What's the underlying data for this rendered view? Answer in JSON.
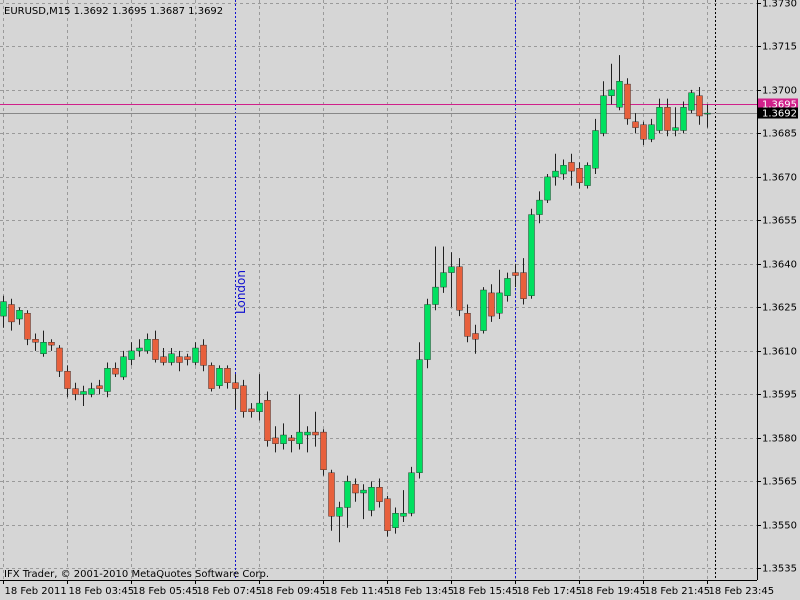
{
  "chart_data": {
    "type": "candlestick",
    "title": "EURUSD,M15  1.3692 1.3695 1.3687 1.3692",
    "footer": "IFX Trader, © 2001-2010 MetaQuotes Software Corp.",
    "categories": [
      "18 Feb 2011",
      null,
      null,
      null,
      null,
      null,
      null,
      null,
      "18 Feb 03:45",
      null,
      null,
      null,
      null,
      null,
      null,
      null,
      "18 Feb 05:45",
      null,
      null,
      null,
      null,
      null,
      null,
      null,
      "18 Feb 07:45",
      null,
      null,
      null,
      null,
      null,
      null,
      null,
      "18 Feb 09:45",
      null,
      null,
      null,
      null,
      null,
      null,
      null,
      "18 Feb 11:45",
      null,
      null,
      null,
      null,
      null,
      null,
      null,
      "18 Feb 13:45",
      null,
      null,
      null,
      null,
      null,
      null,
      null,
      "18 Feb 15:45",
      null,
      null,
      null,
      null,
      null,
      null,
      null,
      "18 Feb 17:45",
      null,
      null,
      null,
      null,
      null,
      null,
      null,
      "18 Feb 19:45",
      null,
      null,
      null,
      null,
      null,
      null,
      null,
      "18 Feb 21:45",
      null,
      null,
      null,
      null,
      null,
      null,
      null,
      "18 Feb 23:45"
    ],
    "open": [
      1.3622,
      1.3626,
      1.3621,
      1.3623,
      1.3614,
      1.3609,
      1.3613,
      1.3611,
      1.3603,
      1.3597,
      1.3595,
      1.3595,
      1.3598,
      1.3596,
      1.3604,
      1.3601,
      1.3607,
      1.361,
      1.361,
      1.3614,
      1.3608,
      1.3606,
      1.3608,
      1.3608,
      1.3606,
      1.3612,
      1.3605,
      1.3598,
      1.3604,
      1.3599,
      1.3598,
      1.359,
      1.3589,
      1.3593,
      1.358,
      1.3578,
      1.358,
      1.3578,
      1.3581,
      1.3582,
      1.3582,
      1.3568,
      1.3553,
      1.3556,
      1.3564,
      1.3561,
      1.3555,
      1.3563,
      1.3559,
      1.3549,
      1.3553,
      1.3554,
      1.3568,
      1.3607,
      1.3626,
      1.3632,
      1.3637,
      1.3639,
      1.3623,
      1.3616,
      1.3617,
      1.363,
      1.3623,
      1.3629,
      1.3637,
      1.3637,
      1.3629,
      1.3657,
      1.3662,
      1.367,
      1.3671,
      1.3675,
      1.3673,
      1.3667,
      1.3673,
      1.3685,
      1.3698,
      1.3694,
      1.3702,
      1.3689,
      1.3688,
      1.3683,
      1.3686,
      1.3694,
      1.3686,
      1.3686,
      1.3693,
      1.3698,
      1.3692
    ],
    "high": [
      1.3629,
      1.3628,
      1.3625,
      1.3624,
      1.3616,
      1.3617,
      1.3614,
      1.3612,
      1.3605,
      1.3599,
      1.3598,
      1.3599,
      1.36,
      1.3606,
      1.3606,
      1.361,
      1.3613,
      1.3614,
      1.3616,
      1.3617,
      1.3611,
      1.3611,
      1.361,
      1.3609,
      1.3613,
      1.3614,
      1.3606,
      1.3605,
      1.3605,
      1.3602,
      1.36,
      1.3592,
      1.3602,
      1.3596,
      1.3584,
      1.3585,
      1.3581,
      1.3595,
      1.3584,
      1.3589,
      1.3583,
      1.3569,
      1.3558,
      1.3567,
      1.3566,
      1.3564,
      1.3565,
      1.3566,
      1.356,
      1.3556,
      1.3562,
      1.357,
      1.3613,
      1.3628,
      1.3646,
      1.3646,
      1.3644,
      1.3642,
      1.3626,
      1.3619,
      1.3632,
      1.3633,
      1.3638,
      1.3637,
      1.364,
      1.3642,
      1.3659,
      1.3665,
      1.3671,
      1.3678,
      1.3676,
      1.3678,
      1.3675,
      1.3675,
      1.369,
      1.3703,
      1.3709,
      1.3712,
      1.3704,
      1.3692,
      1.3689,
      1.369,
      1.3697,
      1.3697,
      1.3694,
      1.3696,
      1.37,
      1.3701,
      1.3695
    ],
    "low": [
      1.3618,
      1.3617,
      1.3619,
      1.3612,
      1.361,
      1.3608,
      1.361,
      1.3601,
      1.3594,
      1.3593,
      1.3591,
      1.3594,
      1.3595,
      1.3594,
      1.3601,
      1.36,
      1.3605,
      1.3608,
      1.3609,
      1.3606,
      1.3605,
      1.3605,
      1.3603,
      1.3605,
      1.3605,
      1.3603,
      1.3596,
      1.3597,
      1.3597,
      1.359,
      1.3587,
      1.3587,
      1.3586,
      1.3577,
      1.3575,
      1.3576,
      1.3575,
      1.3576,
      1.3575,
      1.3577,
      1.3567,
      1.3548,
      1.3544,
      1.3549,
      1.3558,
      1.3552,
      1.3553,
      1.3556,
      1.3546,
      1.3547,
      1.3551,
      1.3553,
      1.3566,
      1.3604,
      1.3624,
      1.363,
      1.3625,
      1.3622,
      1.3613,
      1.3609,
      1.3616,
      1.362,
      1.3621,
      1.3627,
      1.3632,
      1.3626,
      1.3628,
      1.3654,
      1.3661,
      1.3667,
      1.3669,
      1.3667,
      1.3666,
      1.3666,
      1.3671,
      1.3684,
      1.3695,
      1.3693,
      1.3688,
      1.3685,
      1.3681,
      1.3682,
      1.3685,
      1.3684,
      1.3684,
      1.3685,
      1.3692,
      1.3688,
      1.3687
    ],
    "close": [
      1.3627,
      1.362,
      1.3624,
      1.3614,
      1.3613,
      1.3613,
      1.3612,
      1.3603,
      1.3597,
      1.3595,
      1.3596,
      1.3597,
      1.3597,
      1.3604,
      1.3602,
      1.3608,
      1.361,
      1.3611,
      1.3614,
      1.3607,
      1.3606,
      1.3609,
      1.3606,
      1.3607,
      1.3611,
      1.3605,
      1.3597,
      1.3604,
      1.3599,
      1.3597,
      1.3589,
      1.3589,
      1.3592,
      1.3579,
      1.3578,
      1.3581,
      1.3579,
      1.3582,
      1.3582,
      1.3581,
      1.3569,
      1.3553,
      1.3556,
      1.3565,
      1.3561,
      1.3562,
      1.3563,
      1.3558,
      1.3548,
      1.3554,
      1.3554,
      1.3568,
      1.3607,
      1.3626,
      1.3632,
      1.3637,
      1.3639,
      1.3624,
      1.3615,
      1.3614,
      1.3631,
      1.3622,
      1.363,
      1.3635,
      1.3636,
      1.3628,
      1.3657,
      1.3662,
      1.367,
      1.3672,
      1.3674,
      1.3672,
      1.3668,
      1.3674,
      1.3686,
      1.3698,
      1.37,
      1.3703,
      1.369,
      1.3687,
      1.3683,
      1.3688,
      1.3694,
      1.3686,
      1.3687,
      1.3694,
      1.3699,
      1.3691,
      1.3692
    ],
    "up_color": "#00e060",
    "down_color": "#e8603c",
    "ylim": [
      1.3531,
      1.3731
    ],
    "yticks": [
      {
        "value": 1.3535,
        "label": "1.3535"
      },
      {
        "value": 1.355,
        "label": "1.3550"
      },
      {
        "value": 1.3565,
        "label": "1.3565"
      },
      {
        "value": 1.358,
        "label": "1.3580"
      },
      {
        "value": 1.3595,
        "label": "1.3595"
      },
      {
        "value": 1.361,
        "label": "1.3610"
      },
      {
        "value": 1.3625,
        "label": "1.3625"
      },
      {
        "value": 1.364,
        "label": "1.3640"
      },
      {
        "value": 1.3655,
        "label": "1.3655"
      },
      {
        "value": 1.367,
        "label": "1.3670"
      },
      {
        "value": 1.3685,
        "label": "1.3685"
      },
      {
        "value": 1.37,
        "label": "1.3700"
      },
      {
        "value": 1.3715,
        "label": "1.3715"
      },
      {
        "value": 1.373,
        "label": "1.3730"
      }
    ],
    "grid": true,
    "hlines": [
      {
        "value": 1.3695,
        "label": "1.3695",
        "color": "#d0208a"
      },
      {
        "value": 1.3692,
        "label": "1.3692",
        "color": "#000000"
      }
    ],
    "vlines": [
      {
        "at": 29,
        "label": "London",
        "color": "#1010d0"
      },
      {
        "at": 64,
        "color": "#1010d0"
      },
      {
        "at": 89,
        "color": "#000000"
      }
    ]
  }
}
